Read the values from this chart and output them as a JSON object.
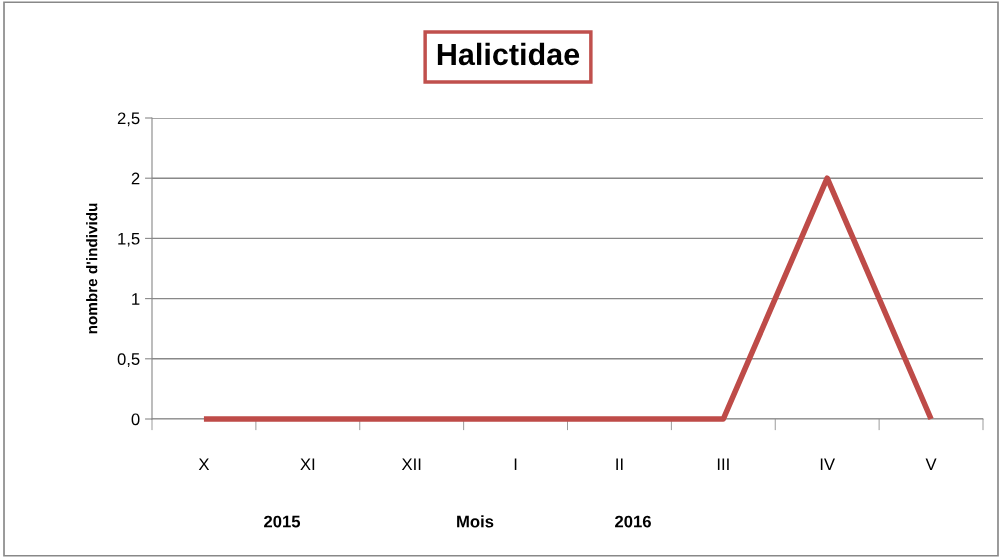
{
  "chart_data": {
    "type": "line",
    "title": "Halictidae",
    "xlabel": "Mois",
    "ylabel": "nombre d'individu",
    "categories": [
      "X",
      "XI",
      "XII",
      "I",
      "II",
      "III",
      "IV",
      "V"
    ],
    "series": [
      {
        "color": "#be4b48",
        "values": [
          0,
          0,
          0,
          0,
          0,
          0,
          2,
          0
        ]
      }
    ],
    "ylim": [
      0,
      2.5
    ],
    "yticks": [
      {
        "value": 0,
        "label": "0"
      },
      {
        "value": 0.5,
        "label": "0,5"
      },
      {
        "value": 1,
        "label": "1"
      },
      {
        "value": 1.5,
        "label": "1,5"
      },
      {
        "value": 2,
        "label": "2"
      },
      {
        "value": 2.5,
        "label": "2,5"
      }
    ],
    "grid": "y",
    "legend": false,
    "marker": "none",
    "line_style": "solid",
    "annotations": [
      "2015",
      "2016"
    ]
  }
}
